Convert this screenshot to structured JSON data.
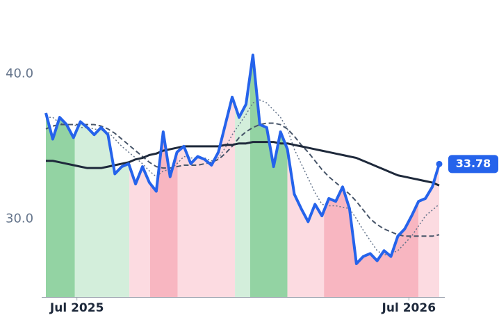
{
  "chart_data": {
    "type": "line",
    "x": [
      0,
      1,
      2,
      3,
      4,
      5,
      6,
      7,
      8,
      9,
      10,
      11,
      12,
      13,
      14,
      15,
      16,
      17,
      18,
      19,
      20,
      21,
      22,
      23,
      24,
      25,
      26,
      27,
      28,
      29,
      30,
      31,
      32,
      33,
      34,
      35,
      36,
      37,
      38,
      39,
      40,
      41,
      42,
      43,
      44,
      45,
      46,
      47,
      48,
      49,
      50,
      51,
      52,
      53,
      54,
      55,
      56,
      57
    ],
    "xlim": [
      0,
      57
    ],
    "xticks": [
      {
        "value": 4.5,
        "label": "Jul 2025"
      },
      {
        "value": 52.6,
        "label": "Jul 2026"
      }
    ],
    "ylim": [
      24.6,
      45.1
    ],
    "yticks": [
      {
        "value": 30,
        "label": "30.0"
      },
      {
        "value": 40,
        "label": "40.0"
      }
    ],
    "grid": false,
    "series": [
      {
        "color": "#2563eb",
        "style": "solid",
        "values": [
          37.3,
          35.5,
          37.0,
          36.5,
          35.6,
          36.7,
          36.3,
          35.8,
          36.3,
          35.8,
          33.1,
          33.6,
          33.8,
          32.4,
          33.6,
          32.5,
          31.9,
          36.0,
          32.9,
          34.6,
          35.0,
          33.8,
          34.3,
          34.1,
          33.7,
          34.6,
          36.5,
          38.4,
          37.0,
          37.9,
          41.3,
          36.5,
          36.3,
          33.6,
          36.0,
          34.8,
          31.7,
          30.7,
          29.8,
          31.0,
          30.2,
          31.4,
          31.2,
          32.2,
          30.7,
          26.9,
          27.4,
          27.6,
          27.1,
          27.8,
          27.4,
          28.8,
          29.3,
          30.2,
          31.2,
          31.4,
          32.2,
          33.78
        ]
      },
      {
        "color": "#1e293b",
        "style": "solid",
        "values": [
          34.0,
          34.0,
          33.9,
          33.8,
          33.7,
          33.6,
          33.5,
          33.5,
          33.5,
          33.6,
          33.7,
          33.8,
          33.9,
          34.1,
          34.2,
          34.4,
          34.5,
          34.7,
          34.8,
          34.9,
          35.0,
          35.0,
          35.0,
          35.0,
          35.0,
          35.0,
          35.1,
          35.1,
          35.2,
          35.2,
          35.3,
          35.3,
          35.3,
          35.3,
          35.2,
          35.2,
          35.1,
          35.0,
          34.9,
          34.8,
          34.7,
          34.6,
          34.5,
          34.4,
          34.3,
          34.2,
          34.0,
          33.8,
          33.6,
          33.4,
          33.2,
          33.0,
          32.9,
          32.8,
          32.7,
          32.6,
          32.5,
          32.3
        ]
      },
      {
        "color": "#475569",
        "style": "dashed",
        "values": [
          36.2,
          36.4,
          36.5,
          36.5,
          36.5,
          36.5,
          36.5,
          36.5,
          36.4,
          36.2,
          35.9,
          35.5,
          35.1,
          34.7,
          34.3,
          33.9,
          33.6,
          33.5,
          33.5,
          33.6,
          33.7,
          33.7,
          33.7,
          33.8,
          33.9,
          34.1,
          34.5,
          35.0,
          35.6,
          36.0,
          36.3,
          36.5,
          36.6,
          36.6,
          36.5,
          36.2,
          35.7,
          35.1,
          34.6,
          34.0,
          33.4,
          32.9,
          32.5,
          32.1,
          31.7,
          31.2,
          30.6,
          30.0,
          29.6,
          29.3,
          29.1,
          28.9,
          28.8,
          28.8,
          28.8,
          28.8,
          28.8,
          28.9
        ]
      },
      {
        "color": "#64748b",
        "style": "dotted",
        "values": [
          37.0,
          37.0,
          36.6,
          36.5,
          36.5,
          36.3,
          36.3,
          36.2,
          36.1,
          36.0,
          35.5,
          35.0,
          34.6,
          34.2,
          33.8,
          33.3,
          32.9,
          33.3,
          33.4,
          33.8,
          34.3,
          34.2,
          34.2,
          34.2,
          34.0,
          34.2,
          34.9,
          35.8,
          36.5,
          37.2,
          38.0,
          38.2,
          38.0,
          37.5,
          37.0,
          36.2,
          34.8,
          33.8,
          32.8,
          31.8,
          31.0,
          30.9,
          30.9,
          30.8,
          30.7,
          30.0,
          29.2,
          28.5,
          27.8,
          27.5,
          27.6,
          27.8,
          28.3,
          28.8,
          29.5,
          30.2,
          30.6,
          31.0
        ]
      }
    ],
    "regions": [
      {
        "start": 0,
        "end": 4.2,
        "color": "#93d3a3"
      },
      {
        "start": 4.2,
        "end": 12.1,
        "color": "#d3eedb"
      },
      {
        "start": 12.1,
        "end": 15.1,
        "color": "#fcdbe1"
      },
      {
        "start": 15.1,
        "end": 19.1,
        "color": "#f8b6c1"
      },
      {
        "start": 19.1,
        "end": 27.4,
        "color": "#fcdbe1"
      },
      {
        "start": 27.4,
        "end": 29.6,
        "color": "#d3eedb"
      },
      {
        "start": 29.6,
        "end": 35.0,
        "color": "#93d3a3"
      },
      {
        "start": 35.0,
        "end": 40.3,
        "color": "#fcdbe1"
      },
      {
        "start": 40.3,
        "end": 54.0,
        "color": "#f8b6c1"
      },
      {
        "start": 54.0,
        "end": 57,
        "color": "#fcdbe1"
      }
    ]
  }
}
